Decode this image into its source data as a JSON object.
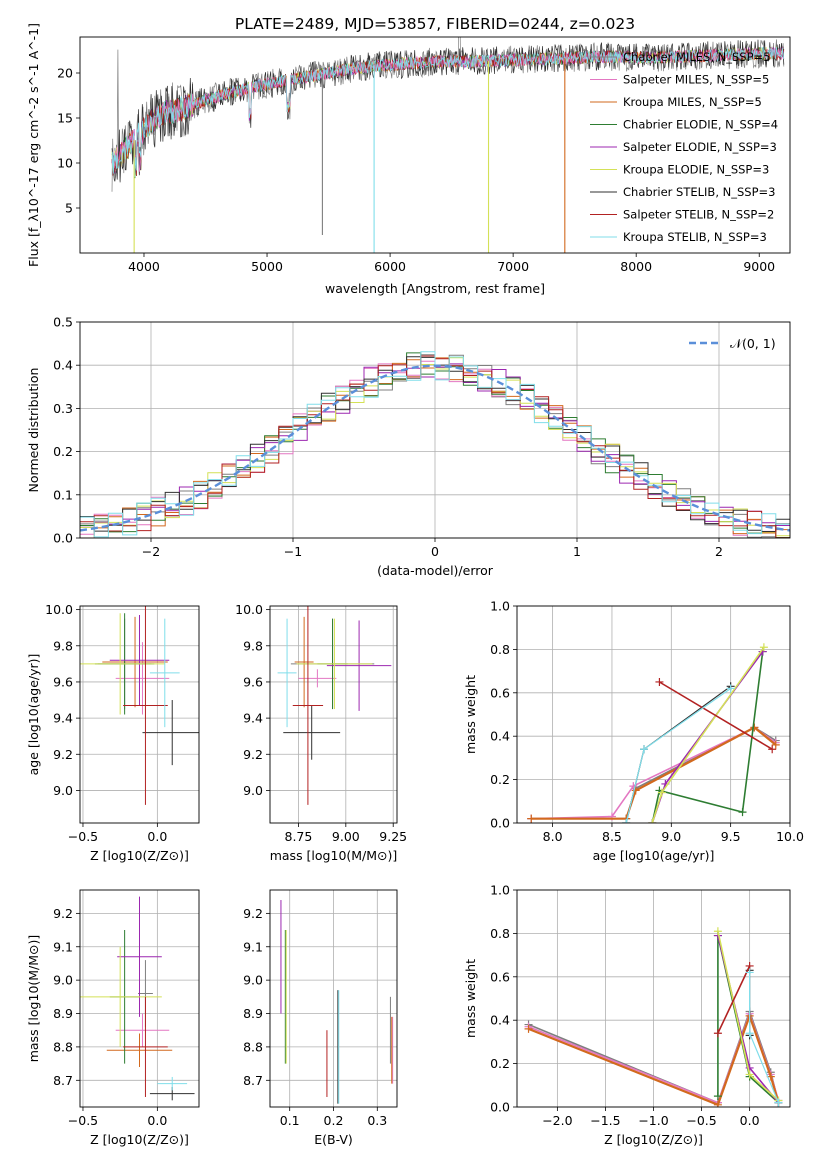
{
  "figure": {
    "title": "PLATE=2489, MJD=53857, FIBERID=0244, z=0.023"
  },
  "colors": {
    "models": [
      "#7f7f7f",
      "#e377c2",
      "#d2691e",
      "#2e7d32",
      "#9c27b0",
      "#d4e157",
      "#303030",
      "#b22222",
      "#80deea"
    ],
    "normal": "#5b8fd9",
    "frame": "#000000",
    "grid": "#b0b0b0"
  },
  "chart_data": [
    {
      "id": "spectrum",
      "type": "line",
      "title": "PLATE=2489, MJD=53857, FIBERID=0244, z=0.023",
      "xlabel": "wavelength [Angstrom, rest frame]",
      "ylabel": "Flux [f_λ10^-17 erg cm^-2 s^-1 A^-1]",
      "xlim": [
        3480,
        9250
      ],
      "ylim": [
        0,
        24
      ],
      "xticks": [
        4000,
        5000,
        6000,
        7000,
        8000,
        9000
      ],
      "yticks": [
        5,
        10,
        15,
        20
      ],
      "grid": false,
      "legend": {
        "position": "top-right"
      },
      "series": [
        {
          "name": "Chabrier MILES, N_SSP=5"
        },
        {
          "name": "Salpeter MILES, N_SSP=5"
        },
        {
          "name": "Kroupa MILES, N_SSP=5"
        },
        {
          "name": "Chabrier ELODIE, N_SSP=4"
        },
        {
          "name": "Salpeter ELODIE, N_SSP=3"
        },
        {
          "name": "Kroupa ELODIE, N_SSP=3"
        },
        {
          "name": "Chabrier STELIB, N_SSP=3"
        },
        {
          "name": "Salpeter STELIB, N_SSP=2"
        },
        {
          "name": "Kroupa STELIB, N_SSP=3"
        }
      ],
      "continuum": {
        "x": [
          3750,
          3850,
          3950,
          4050,
          4150,
          4300,
          4500,
          4700,
          4900,
          5100,
          5300,
          5500,
          5700,
          5900,
          6100,
          6300,
          6500,
          6700,
          6900,
          7100,
          7300,
          7500,
          7700,
          7900,
          8100,
          8300,
          8500,
          8700,
          8900,
          9100
        ],
        "y": [
          10.0,
          11.5,
          13.0,
          14.5,
          15.5,
          16.0,
          17.0,
          17.8,
          18.5,
          19.0,
          19.5,
          20.0,
          20.5,
          20.8,
          21.0,
          21.2,
          21.3,
          21.3,
          21.4,
          21.5,
          21.6,
          21.7,
          21.8,
          21.8,
          21.7,
          21.8,
          21.9,
          22.0,
          22.1,
          22.2
        ]
      },
      "spikes": [
        {
          "x": 5450,
          "y": 2.0
        },
        {
          "x": 5870,
          "y": 0.0
        },
        {
          "x": 6800,
          "y": 0.0
        },
        {
          "x": 7420,
          "y": 0.0
        },
        {
          "x": 3920,
          "y": 0.0
        }
      ]
    },
    {
      "id": "residuals",
      "type": "bar",
      "xlabel": "(data-model)/error",
      "ylabel": "Normed distribution",
      "xlim": [
        -2.5,
        2.5
      ],
      "ylim": [
        0,
        0.5
      ],
      "xticks": [
        -2,
        -1,
        0,
        1,
        2
      ],
      "yticks": [
        0.0,
        0.1,
        0.2,
        0.3,
        0.4,
        0.5
      ],
      "grid": true,
      "bin_width": 0.1,
      "legend": {
        "position": "top-right",
        "entries": [
          "𝒩(0, 1)"
        ]
      },
      "normal_curve": {
        "mu": 0,
        "sigma": 1
      }
    },
    {
      "id": "age-vs-Z",
      "type": "scatter",
      "xlabel": "Z [log10(Z/Z⊙)]",
      "ylabel": "age [log10(age/yr)]",
      "xlim": [
        -0.52,
        0.28
      ],
      "ylim": [
        8.82,
        10.02
      ],
      "xticks": [
        -0.5,
        0.0
      ],
      "yticks": [
        9.0,
        9.2,
        9.4,
        9.6,
        9.8,
        10.0
      ],
      "grid": true,
      "points": [
        {
          "x": -0.22,
          "y": 9.7,
          "xerr": 0.18,
          "yerr": 0.25
        },
        {
          "x": -0.1,
          "y": 9.62,
          "xerr": 0.18,
          "yerr": 0.2
        },
        {
          "x": -0.15,
          "y": 9.71,
          "xerr": 0.22,
          "yerr": 0.25
        },
        {
          "x": -0.22,
          "y": 9.7,
          "xerr": 0.2,
          "yerr": 0.28
        },
        {
          "x": -0.12,
          "y": 9.72,
          "xerr": 0.2,
          "yerr": 0.25
        },
        {
          "x": -0.25,
          "y": 9.7,
          "xerr": 0.3,
          "yerr": 0.28
        },
        {
          "x": 0.1,
          "y": 9.32,
          "xerr": 0.2,
          "yerr": 0.18
        },
        {
          "x": -0.08,
          "y": 9.47,
          "xerr": 0.15,
          "yerr": 0.55
        },
        {
          "x": 0.05,
          "y": 9.65,
          "xerr": 0.1,
          "yerr": 0.3
        }
      ]
    },
    {
      "id": "age-vs-mass",
      "type": "scatter",
      "xlabel": "mass [log10(M/M⊙)]",
      "ylabel": "",
      "xlim": [
        8.6,
        9.27
      ],
      "ylim": [
        8.82,
        10.02
      ],
      "xticks": [
        8.75,
        9.0,
        9.25
      ],
      "yticks": [
        9.0,
        9.2,
        9.4,
        9.6,
        9.8,
        10.0
      ],
      "grid": true,
      "points": [
        {
          "x": 8.93,
          "y": 9.7,
          "xerr": 0.22,
          "yerr": 0.25
        },
        {
          "x": 8.85,
          "y": 9.62,
          "xerr": 0.1,
          "yerr": 0.05
        },
        {
          "x": 8.78,
          "y": 9.71,
          "xerr": 0.05,
          "yerr": 0.25
        },
        {
          "x": 8.93,
          "y": 9.7,
          "xerr": 0.08,
          "yerr": 0.25
        },
        {
          "x": 9.07,
          "y": 9.69,
          "xerr": 0.17,
          "yerr": 0.25
        },
        {
          "x": 8.94,
          "y": 9.7,
          "xerr": 0.2,
          "yerr": 0.25
        },
        {
          "x": 8.82,
          "y": 9.32,
          "xerr": 0.15,
          "yerr": 0.15
        },
        {
          "x": 8.8,
          "y": 9.47,
          "xerr": 0.08,
          "yerr": 0.55
        },
        {
          "x": 8.69,
          "y": 9.65,
          "xerr": 0.05,
          "yerr": 0.3
        }
      ]
    },
    {
      "id": "massweight-vs-age",
      "type": "line",
      "xlabel": "age [log10(age/yr)]",
      "ylabel": "mass weight",
      "xlim": [
        7.7,
        10.0
      ],
      "ylim": [
        0.0,
        1.0
      ],
      "xticks": [
        8.0,
        8.5,
        9.0,
        9.5,
        10.0
      ],
      "yticks": [
        0.0,
        0.2,
        0.4,
        0.6,
        0.8,
        1.0
      ],
      "grid": true,
      "series": [
        {
          "x": [
            7.82,
            8.62,
            8.7,
            9.7,
            9.88
          ],
          "y": [
            0.02,
            0.02,
            0.16,
            0.44,
            0.38
          ]
        },
        {
          "x": [
            7.82,
            8.5,
            8.68,
            9.7,
            9.88
          ],
          "y": [
            0.02,
            0.03,
            0.17,
            0.44,
            0.37
          ]
        },
        {
          "x": [
            7.82,
            8.62,
            8.7,
            9.7,
            9.88
          ],
          "y": [
            0.02,
            0.02,
            0.15,
            0.44,
            0.36
          ]
        },
        {
          "x": [
            8.84,
            8.9,
            9.6,
            9.77
          ],
          "y": [
            0.0,
            0.15,
            0.05,
            0.79
          ]
        },
        {
          "x": [
            8.84,
            8.95,
            9.77
          ],
          "y": [
            0.0,
            0.18,
            0.79
          ]
        },
        {
          "x": [
            8.84,
            8.92,
            9.78
          ],
          "y": [
            0.0,
            0.14,
            0.81
          ]
        },
        {
          "x": [
            8.62,
            8.77,
            9.5
          ],
          "y": [
            0.0,
            0.34,
            0.63
          ]
        },
        {
          "x": [
            8.9,
            9.85
          ],
          "y": [
            0.65,
            0.34
          ]
        },
        {
          "x": [
            8.62,
            8.77,
            9.5
          ],
          "y": [
            0.0,
            0.34,
            0.62
          ]
        }
      ]
    },
    {
      "id": "mass-vs-Z",
      "type": "scatter",
      "xlabel": "Z [log10(Z/Z⊙)]",
      "ylabel": "mass [log10(M/M⊙)]",
      "xlim": [
        -0.52,
        0.28
      ],
      "ylim": [
        8.62,
        9.27
      ],
      "xticks": [
        -0.5,
        0.0
      ],
      "yticks": [
        8.7,
        8.8,
        8.9,
        9.0,
        9.1,
        9.2
      ],
      "grid": true,
      "points": [
        {
          "x": -0.08,
          "y": 8.96,
          "xerr": 0.05,
          "yerr": 0.1
        },
        {
          "x": -0.1,
          "y": 8.85,
          "xerr": 0.18,
          "yerr": 0.05
        },
        {
          "x": -0.12,
          "y": 8.79,
          "xerr": 0.22,
          "yerr": 0.05
        },
        {
          "x": -0.22,
          "y": 8.95,
          "xerr": 0.1,
          "yerr": 0.2
        },
        {
          "x": -0.12,
          "y": 9.07,
          "xerr": 0.15,
          "yerr": 0.18
        },
        {
          "x": -0.25,
          "y": 8.95,
          "xerr": 0.28,
          "yerr": 0.15
        },
        {
          "x": 0.1,
          "y": 8.66,
          "xerr": 0.15,
          "yerr": 0.02
        },
        {
          "x": -0.08,
          "y": 8.8,
          "xerr": 0.15,
          "yerr": 0.15
        },
        {
          "x": 0.1,
          "y": 8.69,
          "xerr": 0.1,
          "yerr": 0.02
        }
      ]
    },
    {
      "id": "mass-vs-ebv",
      "type": "scatter",
      "xlabel": "E(B-V)",
      "ylabel": "",
      "xlim": [
        0.055,
        0.345
      ],
      "ylim": [
        8.62,
        9.27
      ],
      "xticks": [
        0.1,
        0.2,
        0.3
      ],
      "yticks": [
        8.7,
        8.8,
        8.9,
        9.0,
        9.1,
        9.2
      ],
      "grid": true,
      "points": [
        {
          "x": 0.33,
          "y": 8.85,
          "xerr": 0.0,
          "yerr": 0.1
        },
        {
          "x": 0.335,
          "y": 8.79,
          "xerr": 0.0,
          "yerr": 0.1
        },
        {
          "x": 0.333,
          "y": 8.79,
          "xerr": 0.0,
          "yerr": 0.1
        },
        {
          "x": 0.09,
          "y": 8.95,
          "xerr": 0.0,
          "yerr": 0.2
        },
        {
          "x": 0.08,
          "y": 9.07,
          "xerr": 0.0,
          "yerr": 0.17
        },
        {
          "x": 0.092,
          "y": 8.95,
          "xerr": 0.0,
          "yerr": 0.2
        },
        {
          "x": 0.21,
          "y": 8.8,
          "xerr": 0.0,
          "yerr": 0.17
        },
        {
          "x": 0.185,
          "y": 8.75,
          "xerr": 0.0,
          "yerr": 0.1
        },
        {
          "x": 0.212,
          "y": 8.8,
          "xerr": 0.0,
          "yerr": 0.17
        }
      ]
    },
    {
      "id": "massweight-vs-Z",
      "type": "line",
      "xlabel": "Z [log10(Z/Z⊙)]",
      "ylabel": "mass weight",
      "xlim": [
        -2.42,
        0.42
      ],
      "ylim": [
        0.0,
        1.0
      ],
      "xticks": [
        -2.0,
        -1.5,
        -1.0,
        -0.5,
        0.0
      ],
      "yticks": [
        0.0,
        0.2,
        0.4,
        0.6,
        0.8,
        1.0
      ],
      "grid": true,
      "series": [
        {
          "x": [
            -2.3,
            -0.33,
            0.0,
            0.22,
            0.3
          ],
          "y": [
            0.38,
            0.02,
            0.44,
            0.16,
            0.02
          ]
        },
        {
          "x": [
            -2.3,
            -0.33,
            0.0,
            0.22,
            0.3
          ],
          "y": [
            0.37,
            0.02,
            0.43,
            0.15,
            0.03
          ]
        },
        {
          "x": [
            -2.3,
            -0.33,
            0.0,
            0.22,
            0.3
          ],
          "y": [
            0.36,
            0.01,
            0.42,
            0.14,
            0.02
          ]
        },
        {
          "x": [
            -0.33,
            -0.33,
            0.0,
            0.3
          ],
          "y": [
            0.05,
            0.79,
            0.14,
            0.02
          ]
        },
        {
          "x": [
            -0.33,
            0.0,
            0.3
          ],
          "y": [
            0.79,
            0.18,
            0.02
          ]
        },
        {
          "x": [
            -0.33,
            0.0,
            0.3
          ],
          "y": [
            0.81,
            0.15,
            0.03
          ]
        },
        {
          "x": [
            0.0,
            0.0
          ],
          "y": [
            0.33,
            0.63
          ]
        },
        {
          "x": [
            -0.33,
            0.0
          ],
          "y": [
            0.34,
            0.65
          ]
        },
        {
          "x": [
            0.0,
            0.0,
            0.3
          ],
          "y": [
            0.62,
            0.34,
            0.02
          ]
        }
      ]
    }
  ]
}
